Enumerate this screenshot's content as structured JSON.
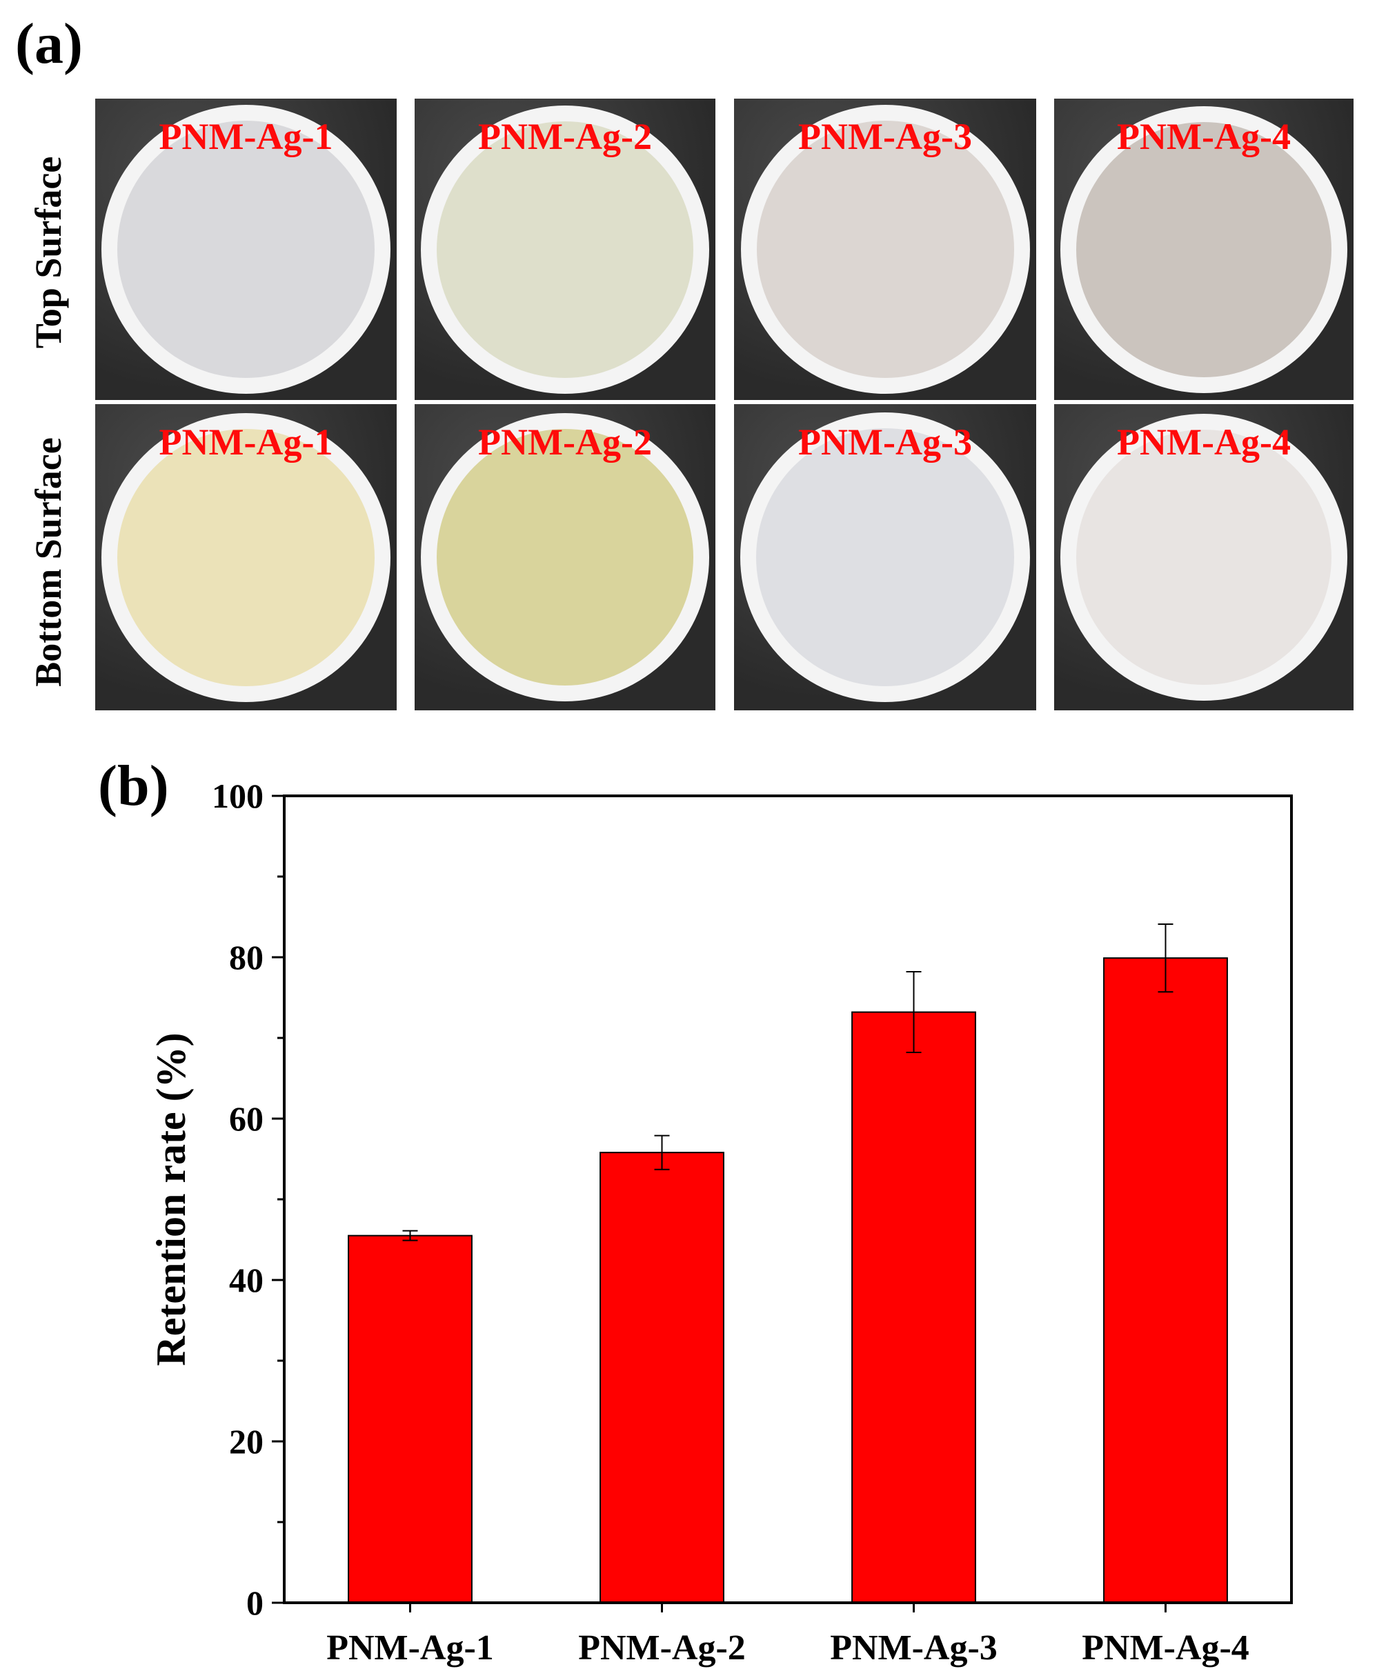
{
  "panel_a": {
    "letter": "(a)",
    "row_labels": [
      "Top Surface",
      "Bottom Surface"
    ],
    "samples": [
      {
        "label": "PNM-Ag-1",
        "top_color": "#d9d9dc",
        "bottom_color": "#ebe2b8"
      },
      {
        "label": "PNM-Ag-2",
        "top_color": "#dedfcb",
        "bottom_color": "#d9d49c"
      },
      {
        "label": "PNM-Ag-3",
        "top_color": "#dcd6d2",
        "bottom_color": "#dedfe3"
      },
      {
        "label": "PNM-Ag-4",
        "top_color": "#cbc4be",
        "bottom_color": "#e8e4e2"
      }
    ],
    "photo_background": "#2a2a2a",
    "rim_color": "#f4f4f4",
    "label_color": "#ff0a0a"
  },
  "panel_b": {
    "letter": "(b)"
  },
  "chart_data": {
    "type": "bar",
    "categories": [
      "PNM-Ag-1",
      "PNM-Ag-2",
      "PNM-Ag-3",
      "PNM-Ag-4"
    ],
    "values": [
      45.5,
      55.8,
      73.2,
      79.9
    ],
    "errors": [
      0.6,
      2.1,
      5.0,
      4.2
    ],
    "ylabel": "Retention rate (%)",
    "xlabel": "",
    "ylim": [
      0,
      100
    ],
    "yticks": [
      0,
      20,
      40,
      60,
      80,
      100
    ],
    "bar_color": "#ff0000",
    "grid": false
  }
}
